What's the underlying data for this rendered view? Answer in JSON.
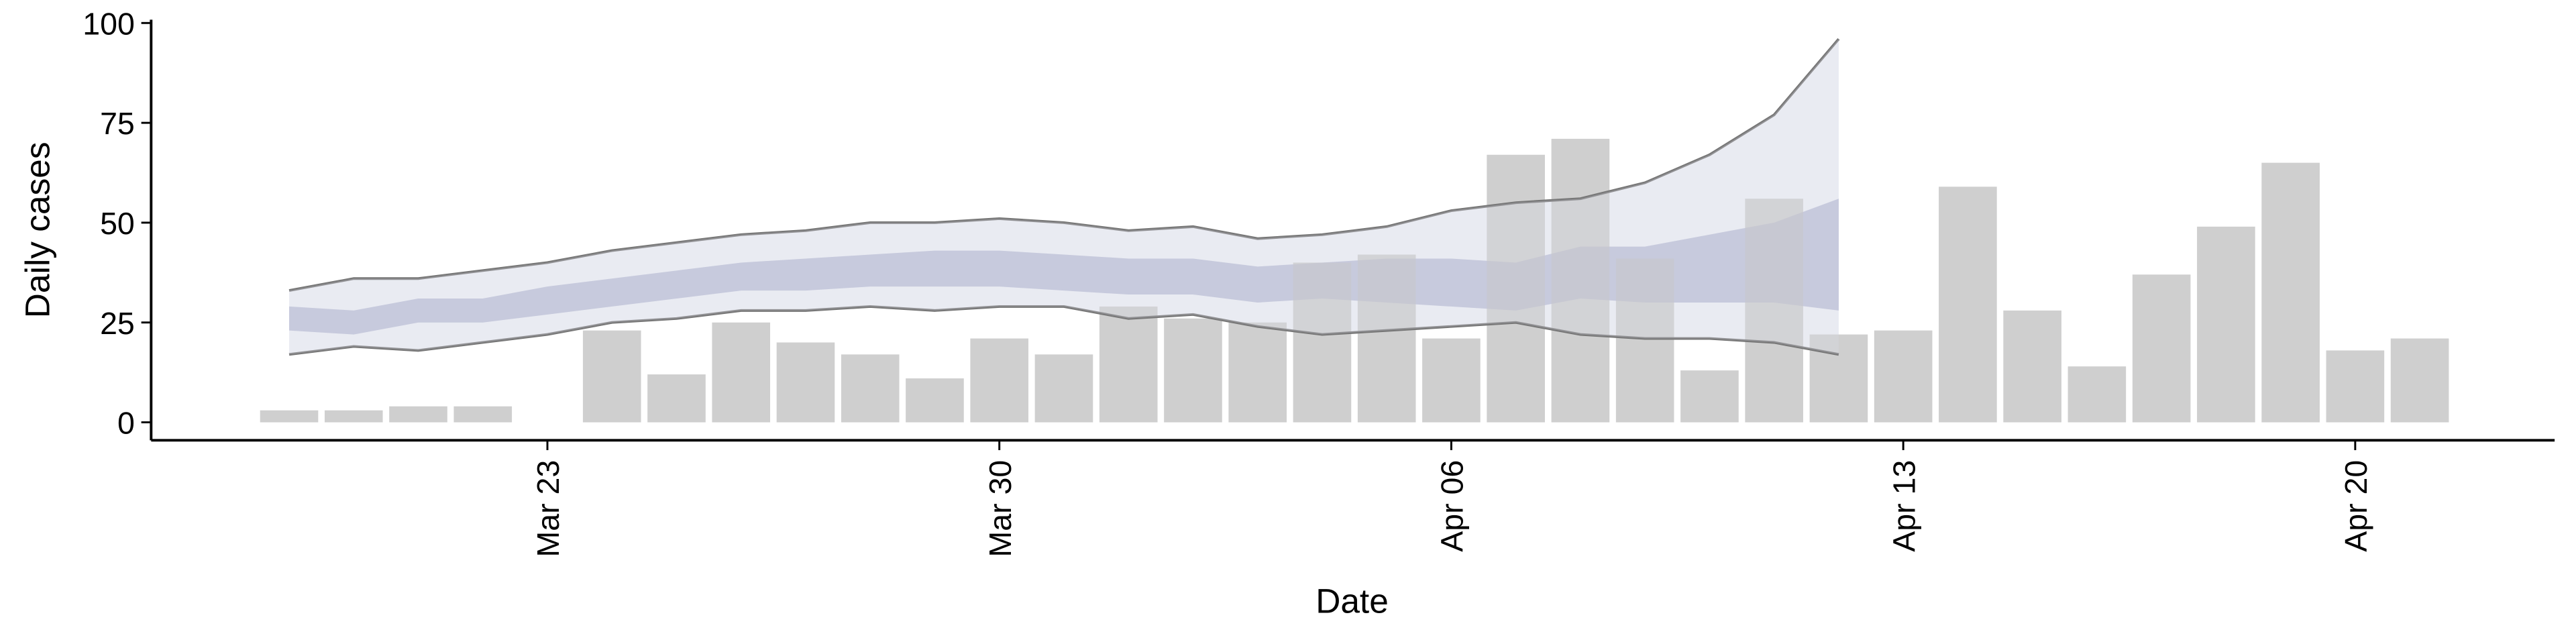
{
  "chart_data": {
    "type": "bar",
    "x_label": "Date",
    "y_label": "Daily cases",
    "x": [
      "Mar 19",
      "Mar 20",
      "Mar 21",
      "Mar 22",
      "Mar 23",
      "Mar 24",
      "Mar 25",
      "Mar 26",
      "Mar 27",
      "Mar 28",
      "Mar 29",
      "Mar 30",
      "Mar 31",
      "Apr 01",
      "Apr 02",
      "Apr 03",
      "Apr 04",
      "Apr 05",
      "Apr 06",
      "Apr 07",
      "Apr 08",
      "Apr 09",
      "Apr 10",
      "Apr 11",
      "Apr 12",
      "Apr 13",
      "Apr 14",
      "Apr 15",
      "Apr 16",
      "Apr 17",
      "Apr 18",
      "Apr 19",
      "Apr 20",
      "Apr 21"
    ],
    "values": [
      3,
      3,
      4,
      4,
      0,
      23,
      12,
      25,
      20,
      17,
      11,
      21,
      17,
      29,
      26,
      25,
      40,
      42,
      21,
      67,
      71,
      41,
      13,
      56,
      22,
      23,
      59,
      28,
      14,
      37,
      49,
      65,
      18,
      21
    ],
    "color": "#cccccc",
    "bands": [
      {
        "color": "#dfe1ec",
        "lower": [
          17,
          19,
          18,
          20,
          22,
          25,
          26,
          28,
          28,
          29,
          28,
          29,
          29,
          26,
          27,
          24,
          22,
          23,
          24,
          25,
          22,
          21,
          21,
          20,
          17,
          null,
          null,
          null,
          null,
          null,
          null,
          null,
          null,
          null
        ],
        "upper": [
          33,
          36,
          36,
          38,
          40,
          43,
          45,
          47,
          48,
          50,
          50,
          51,
          50,
          48,
          49,
          46,
          47,
          49,
          53,
          55,
          56,
          60,
          67,
          77,
          96,
          null,
          null,
          null,
          null,
          null,
          null,
          null,
          null,
          null
        ]
      },
      {
        "color": "#aab0cc",
        "lower": [
          23,
          22,
          25,
          25,
          27,
          29,
          31,
          33,
          33,
          34,
          34,
          34,
          33,
          32,
          32,
          30,
          31,
          30,
          29,
          28,
          31,
          30,
          30,
          30,
          28,
          null,
          null,
          null,
          null,
          null,
          null,
          null,
          null,
          null
        ],
        "upper": [
          29,
          28,
          31,
          31,
          34,
          36,
          38,
          40,
          41,
          42,
          43,
          43,
          42,
          41,
          41,
          39,
          40,
          41,
          41,
          40,
          44,
          44,
          47,
          50,
          56,
          null,
          null,
          null,
          null,
          null,
          null,
          null,
          null,
          null
        ]
      }
    ],
    "line_color": "#777777",
    "ylim": [
      -4.5,
      100
    ],
    "yticks": [
      0,
      25,
      50,
      75,
      100
    ],
    "xticks": [
      "Mar 23",
      "Mar 30",
      "Apr 06",
      "Apr 13",
      "Apr 20"
    ]
  }
}
